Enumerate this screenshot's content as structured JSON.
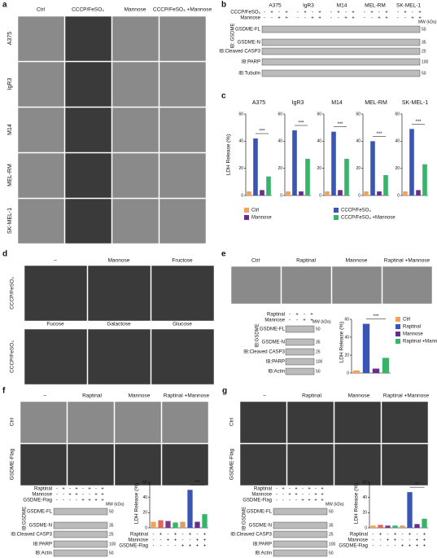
{
  "panels": {
    "a": {
      "label": "a",
      "columns": [
        "Ctrl",
        "CCCP/FeSO₄",
        "Mannose",
        "CCCP/FeSO₄ +Mannose"
      ],
      "rows": [
        "A375",
        "IgR3",
        "M14",
        "MEL-RM",
        "SK-MEL-1"
      ]
    },
    "b": {
      "label": "b",
      "cell_lines": [
        "A375",
        "IgR3",
        "M14",
        "MEL-RM",
        "SK-MEL-1"
      ],
      "conditions": [
        {
          "name": "CCCP/FeSO₄",
          "signs": [
            "-",
            "+",
            "-",
            "+"
          ]
        },
        {
          "name": "Mannose",
          "signs": [
            "-",
            "-",
            "+",
            "+"
          ]
        }
      ],
      "mw_title": "MW (kDa)",
      "ib_label": "IB: GSDME",
      "rows": [
        "GSDME-FL",
        "GSDME-N",
        "IB:Cleaved CASP3",
        "IB:PARP",
        "IB:Tubulin"
      ],
      "mw": [
        "50",
        "35",
        "20",
        "100",
        "50"
      ]
    },
    "c": {
      "label": "c",
      "y_label": "LDH Release (%)",
      "legend": [
        "Ctrl",
        "CCCP/FeSO₄",
        "Mannose",
        "CCCP/FeSO₄ +Mannose"
      ],
      "colors": [
        "#f4a259",
        "#3b55b5",
        "#6a2c91",
        "#35b46a"
      ],
      "charts": [
        {
          "title": "A375",
          "values": [
            3,
            42,
            4,
            14
          ],
          "ylim": [
            0,
            60
          ],
          "yticks": [
            0,
            20,
            40,
            60
          ],
          "significance": "***"
        },
        {
          "title": "IgR3",
          "values": [
            3,
            48,
            3,
            27
          ],
          "ylim": [
            0,
            60
          ],
          "yticks": [
            0,
            20,
            40,
            60
          ],
          "significance": "***"
        },
        {
          "title": "M14",
          "values": [
            3,
            47,
            4,
            27
          ],
          "ylim": [
            0,
            60
          ],
          "yticks": [
            0,
            20,
            40,
            60
          ],
          "significance": "***"
        },
        {
          "title": "MEL-RM",
          "values": [
            3,
            40,
            3,
            15
          ],
          "ylim": [
            0,
            60
          ],
          "yticks": [
            0,
            20,
            40,
            60
          ],
          "significance": "***"
        },
        {
          "title": "SK-MEL-1",
          "values": [
            3,
            49,
            4,
            23
          ],
          "ylim": [
            0,
            60
          ],
          "yticks": [
            0,
            20,
            40,
            60
          ],
          "significance": "***"
        }
      ]
    },
    "d": {
      "label": "d",
      "columns": [
        "–",
        "Mannose",
        "Fructose",
        "Fucose",
        "Galactose",
        "Glucose"
      ],
      "row_label": "CCCP/FeSO₄"
    },
    "e": {
      "label": "e",
      "columns": [
        "Ctrl",
        "Raptinal",
        "Mannose",
        "Raptinal +Mannose"
      ],
      "conditions": [
        {
          "name": "Raptinal",
          "signs": [
            "-",
            "+",
            "-",
            "+"
          ]
        },
        {
          "name": "Mannose",
          "signs": [
            "-",
            "-",
            "+",
            "+"
          ]
        }
      ],
      "mw_title": "MW (kDa)",
      "ib_label": "IB:GSDME",
      "rows": [
        "GSDME-FL",
        "GSDME-N",
        "IB:Cleaved CASP3",
        "IB:PARP",
        "IB:Actin"
      ],
      "mw": [
        "50",
        "35",
        "25",
        "100",
        "50"
      ],
      "chart": {
        "y_label": "LDH Release (%)",
        "values": [
          3,
          55,
          5,
          17
        ],
        "ylim": [
          0,
          60
        ],
        "yticks": [
          0,
          20,
          40,
          60
        ],
        "significance": "***",
        "legend": [
          "Ctrl",
          "Raptinal",
          "Mannose",
          "Raptinal +Mannose"
        ],
        "colors": [
          "#f4a259",
          "#3b55b5",
          "#6a2c91",
          "#35b46a"
        ]
      }
    },
    "f": {
      "label": "f",
      "columns": [
        "–",
        "Raptinal",
        "Mannose",
        "Raptinal +Mannose"
      ],
      "rows": [
        "Ctrl",
        "GSDME-Flag"
      ],
      "conditions": [
        {
          "name": "Raptinal",
          "signs": [
            "-",
            "+",
            "-",
            "+",
            "-",
            "+",
            "-",
            "+"
          ]
        },
        {
          "name": "Mannose",
          "signs": [
            "-",
            "-",
            "+",
            "+",
            "-",
            "-",
            "+",
            "+"
          ]
        },
        {
          "name": "GSDME-Flag",
          "signs": [
            "-",
            "-",
            "-",
            "-",
            "+",
            "+",
            "+",
            "+"
          ]
        }
      ],
      "mw_title": "MW (kDa)",
      "ib_label": "IB:GSDME",
      "blot_rows": [
        "GSDME-FL",
        "GSDME-N",
        "IB:Cleaved CASP3",
        "IB:PARP",
        "IB:Actin"
      ],
      "mw": [
        "50",
        "35",
        "25",
        "100",
        "50"
      ],
      "chart": {
        "y_label": "LDH Release (%)",
        "values": [
          8,
          10,
          9,
          7,
          8,
          50,
          8,
          18
        ],
        "ylim": [
          0,
          60
        ],
        "yticks": [
          0,
          20,
          40,
          60
        ],
        "significance": "***",
        "colors": [
          "#f4a259",
          "#e0665a",
          "#7a3b8f",
          "#35b46a",
          "#d9a066",
          "#3b55b5",
          "#6a2c91",
          "#35b46a"
        ]
      }
    },
    "g": {
      "label": "g",
      "columns": [
        "–",
        "Raptinal",
        "Mannose",
        "Raptinal +Mannose"
      ],
      "rows": [
        "Ctrl",
        "GSDME-Flag"
      ],
      "conditions": [
        {
          "name": "Raptinal",
          "signs": [
            "-",
            "+",
            "-",
            "+",
            "-",
            "+",
            "-",
            "+"
          ]
        },
        {
          "name": "Mannose",
          "signs": [
            "-",
            "-",
            "+",
            "+",
            "-",
            "-",
            "+",
            "+"
          ]
        },
        {
          "name": "GSDME-Flag",
          "signs": [
            "-",
            "-",
            "-",
            "-",
            "+",
            "+",
            "+",
            "+"
          ]
        }
      ],
      "mw_title": "MW (kDa)",
      "ib_label": "IB:GSDME",
      "blot_rows": [
        "GSDME-FL",
        "GSDME-N",
        "IB:Cleaved CASP3",
        "IB:PARP",
        "IB:Actin"
      ],
      "mw": [
        "50",
        "35",
        "25",
        "100",
        "50"
      ],
      "chart": {
        "y_label": "LDH Release (%)",
        "values": [
          3,
          4,
          3,
          3,
          3,
          47,
          5,
          12
        ],
        "ylim": [
          0,
          60
        ],
        "yticks": [
          0,
          20,
          40,
          60
        ],
        "significance": "**",
        "colors": [
          "#f4a259",
          "#e0665a",
          "#7a3b8f",
          "#35b46a",
          "#d9a066",
          "#3b55b5",
          "#6a2c91",
          "#35b46a"
        ]
      }
    }
  }
}
